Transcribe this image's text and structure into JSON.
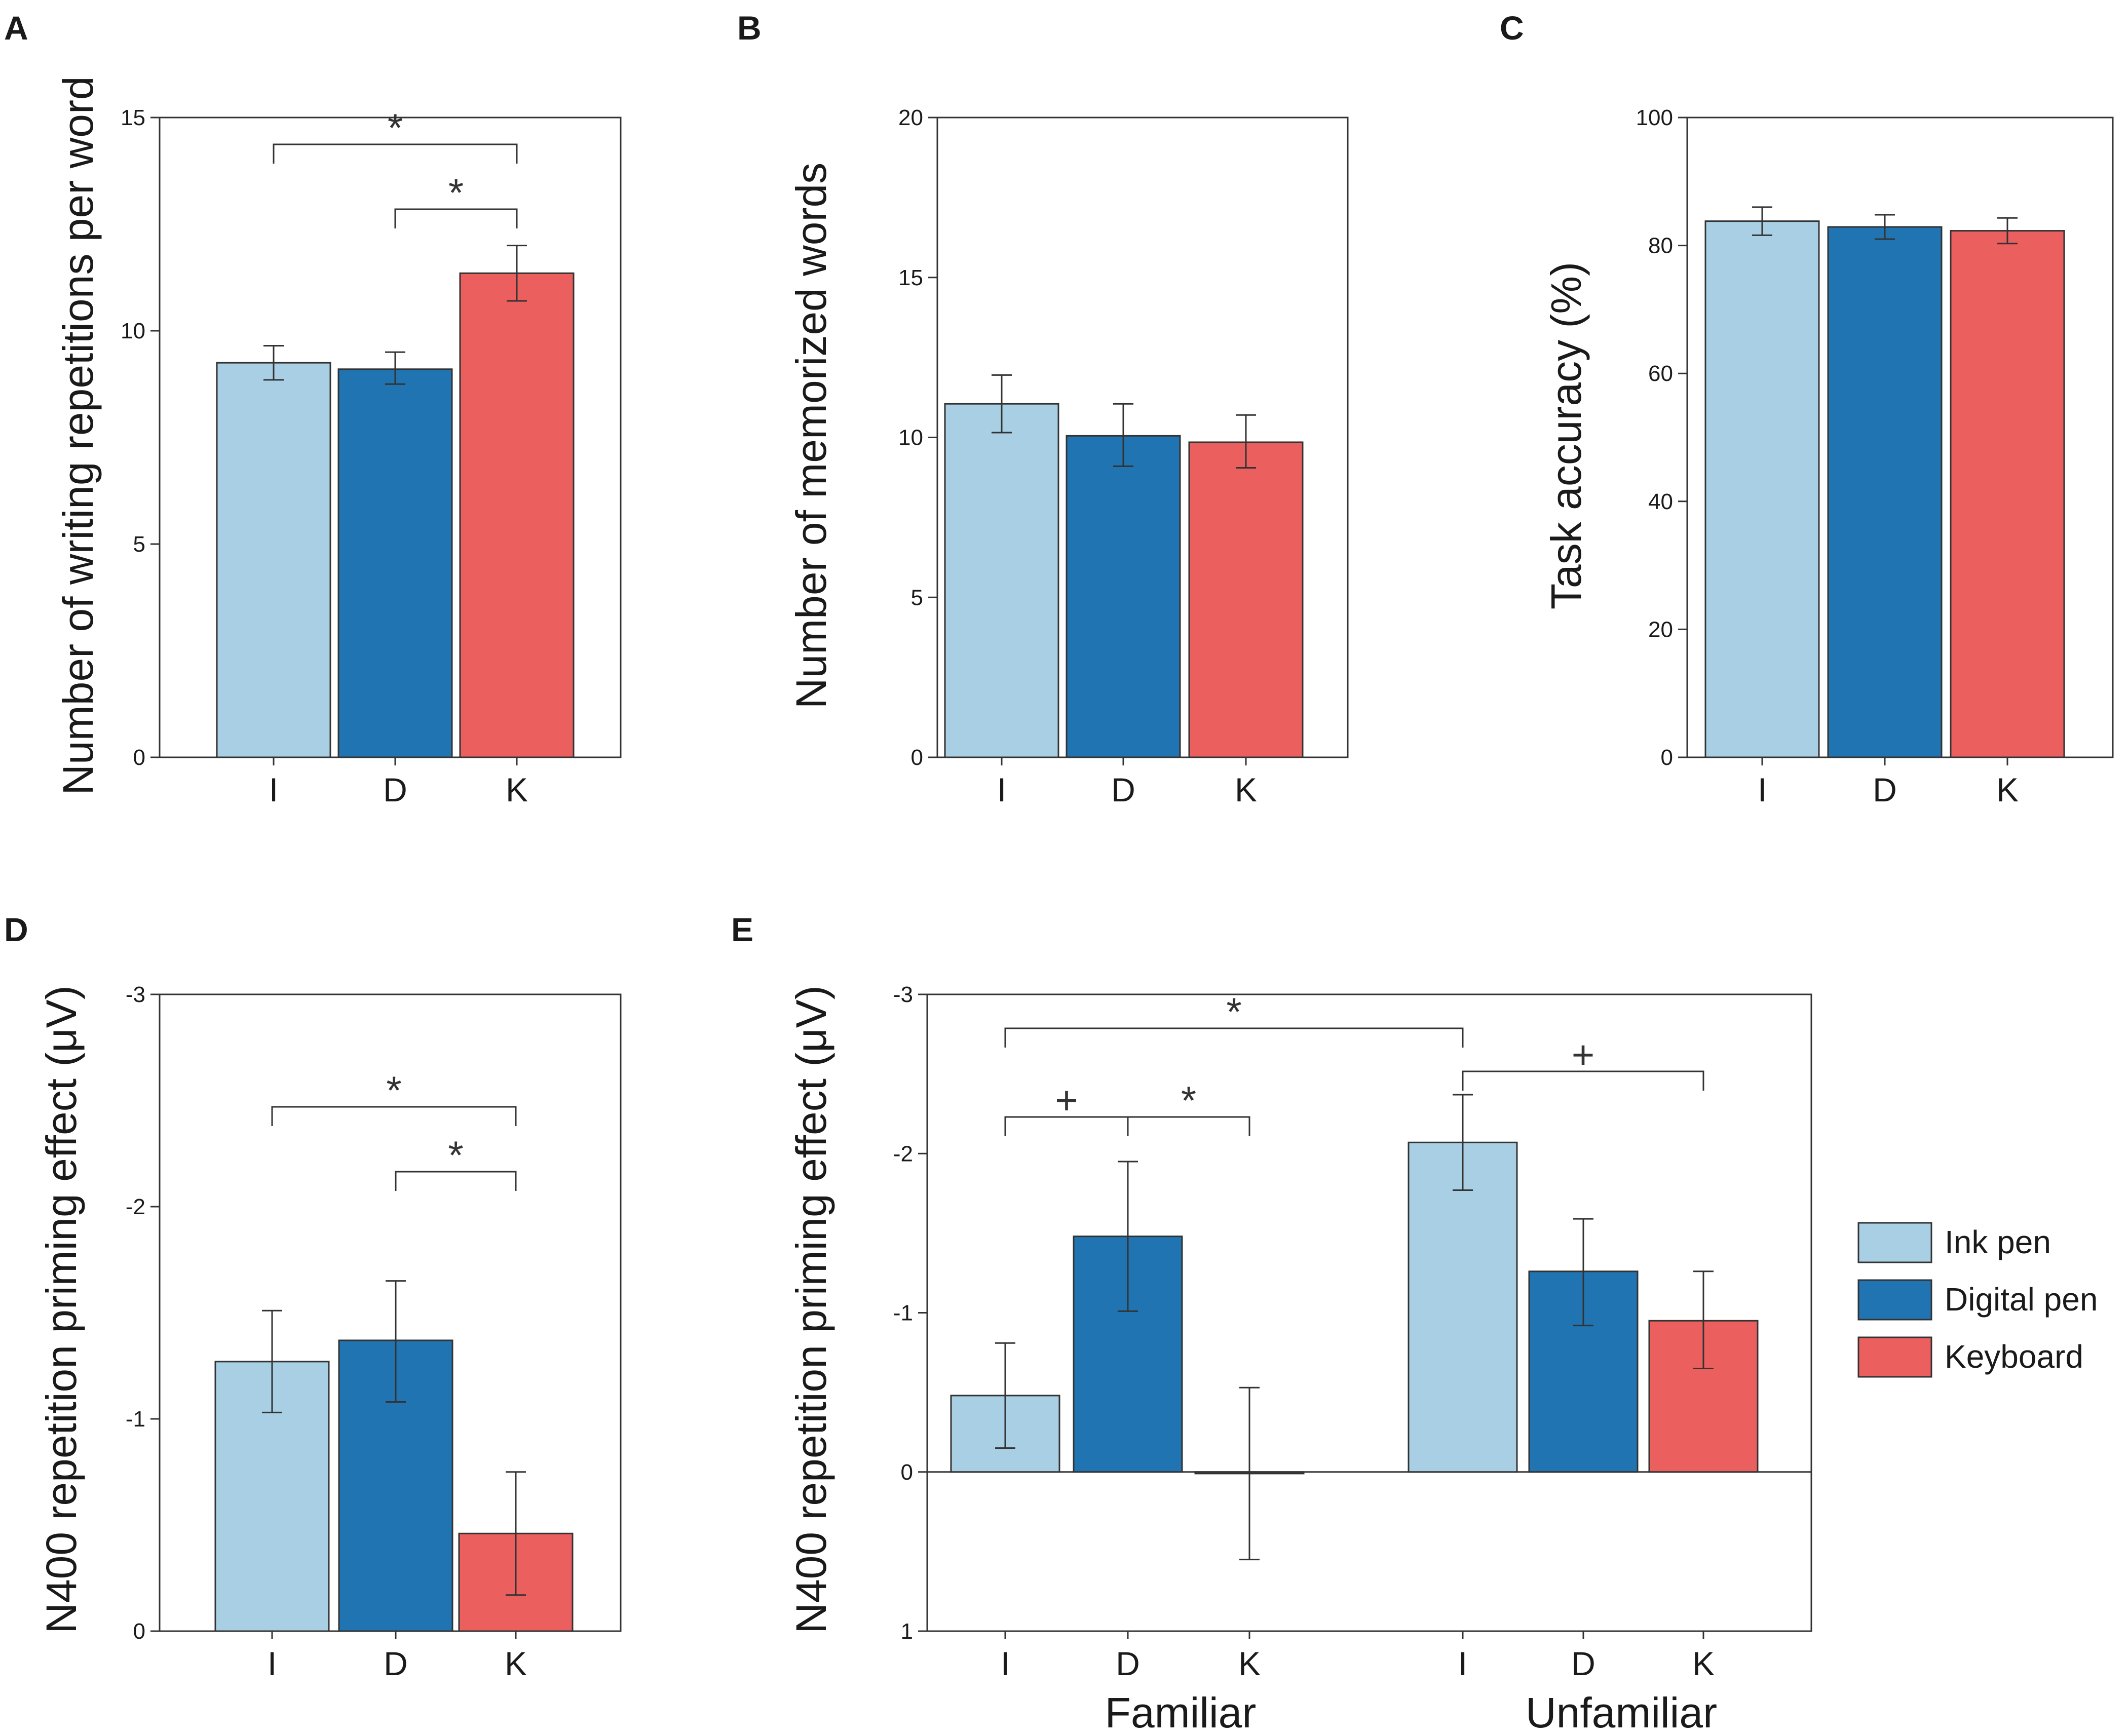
{
  "colors": {
    "ink_pen": "#a8cfe3",
    "digital_pen": "#1f74b1",
    "keyboard": "#eb5f5f",
    "axis": "#333333",
    "error": "#333333"
  },
  "legend": {
    "items": [
      {
        "label": "Ink pen",
        "color_key": "ink_pen"
      },
      {
        "label": "Digital pen",
        "color_key": "digital_pen"
      },
      {
        "label": "Keyboard",
        "color_key": "keyboard"
      }
    ]
  },
  "chart_data": [
    {
      "panel": "A",
      "type": "bar",
      "ylabel": "Number of writing repetitions per word",
      "ylim": [
        0,
        15
      ],
      "yticks": [
        0,
        5,
        10,
        15
      ],
      "ytick_labels": [
        "0",
        "5",
        "10",
        "15"
      ],
      "categories": [
        "I",
        "D",
        "K"
      ],
      "series": [
        {
          "name": "Ink pen",
          "color_key": "ink_pen",
          "value": 9.25,
          "err_low": 8.85,
          "err_high": 9.65
        },
        {
          "name": "Digital pen",
          "color_key": "digital_pen",
          "value": 9.1,
          "err_low": 8.75,
          "err_high": 9.5
        },
        {
          "name": "Keyboard",
          "color_key": "keyboard",
          "value": 11.35,
          "err_low": 10.7,
          "err_high": 12.0
        }
      ],
      "significance": [
        {
          "from": 0,
          "to": 2,
          "label": "*",
          "level": 0
        },
        {
          "from": 1,
          "to": 2,
          "label": "*",
          "level": 1
        }
      ]
    },
    {
      "panel": "B",
      "type": "bar",
      "ylabel": "Number of memorized words",
      "ylim": [
        0,
        20
      ],
      "yticks": [
        0,
        5,
        10,
        15,
        20
      ],
      "ytick_labels": [
        "0",
        "5",
        "10",
        "15",
        "20"
      ],
      "categories": [
        "I",
        "D",
        "K"
      ],
      "series": [
        {
          "name": "Ink pen",
          "color_key": "ink_pen",
          "value": 11.05,
          "err_low": 10.15,
          "err_high": 11.95
        },
        {
          "name": "Digital pen",
          "color_key": "digital_pen",
          "value": 10.05,
          "err_low": 9.1,
          "err_high": 11.05
        },
        {
          "name": "Keyboard",
          "color_key": "keyboard",
          "value": 9.85,
          "err_low": 9.05,
          "err_high": 10.7
        }
      ],
      "significance": []
    },
    {
      "panel": "C",
      "type": "bar",
      "ylabel": "Task accuracy (%)",
      "ylim": [
        0,
        100
      ],
      "yticks": [
        0,
        20,
        40,
        60,
        80,
        100
      ],
      "ytick_labels": [
        "0",
        "20",
        "40",
        "60",
        "80",
        "100"
      ],
      "categories": [
        "I",
        "D",
        "K"
      ],
      "series": [
        {
          "name": "Ink pen",
          "color_key": "ink_pen",
          "value": 83.8,
          "err_low": 81.6,
          "err_high": 86.0
        },
        {
          "name": "Digital pen",
          "color_key": "digital_pen",
          "value": 82.9,
          "err_low": 81.0,
          "err_high": 84.8
        },
        {
          "name": "Keyboard",
          "color_key": "keyboard",
          "value": 82.3,
          "err_low": 80.3,
          "err_high": 84.3
        }
      ],
      "significance": []
    },
    {
      "panel": "D",
      "type": "bar",
      "ylabel": "N400 repetition priming effect (μV)",
      "ylim": [
        0,
        -3
      ],
      "yticks": [
        0,
        -1,
        -2,
        -3
      ],
      "ytick_labels": [
        "0",
        "-1",
        "-2",
        "-3"
      ],
      "categories": [
        "I",
        "D",
        "K"
      ],
      "series": [
        {
          "name": "Ink pen",
          "color_key": "ink_pen",
          "value": -1.27,
          "err_low": -1.03,
          "err_high": -1.51
        },
        {
          "name": "Digital pen",
          "color_key": "digital_pen",
          "value": -1.37,
          "err_low": -1.08,
          "err_high": -1.65
        },
        {
          "name": "Keyboard",
          "color_key": "keyboard",
          "value": -0.46,
          "err_low": -0.17,
          "err_high": -0.75
        }
      ],
      "significance": [
        {
          "from": 0,
          "to": 2,
          "label": "*",
          "level": 0
        },
        {
          "from": 1,
          "to": 2,
          "label": "*",
          "level": 1
        }
      ]
    },
    {
      "panel": "E",
      "type": "bar",
      "ylabel": "N400 repetition priming effect (μV)",
      "ylim": [
        1,
        -3
      ],
      "yticks": [
        1,
        0,
        -1,
        -2,
        -3
      ],
      "ytick_labels": [
        "1",
        "0",
        "-1",
        "-2",
        "-3"
      ],
      "groups": [
        {
          "name": "Familiar",
          "categories": [
            "I",
            "D",
            "K"
          ],
          "series": [
            {
              "name": "Ink pen",
              "color_key": "ink_pen",
              "value": -0.48,
              "err_low": -0.15,
              "err_high": -0.81
            },
            {
              "name": "Digital pen",
              "color_key": "digital_pen",
              "value": -1.48,
              "err_low": -1.01,
              "err_high": -1.95
            },
            {
              "name": "Keyboard",
              "color_key": "keyboard",
              "value": 0.01,
              "err_low": 0.55,
              "err_high": -0.53
            }
          ]
        },
        {
          "name": "Unfamiliar",
          "categories": [
            "I",
            "D",
            "K"
          ],
          "series": [
            {
              "name": "Ink pen",
              "color_key": "ink_pen",
              "value": -2.07,
              "err_low": -1.77,
              "err_high": -2.37
            },
            {
              "name": "Digital pen",
              "color_key": "digital_pen",
              "value": -1.26,
              "err_low": -0.92,
              "err_high": -1.59
            },
            {
              "name": "Keyboard",
              "color_key": "keyboard",
              "value": -0.95,
              "err_low": -0.65,
              "err_high": -1.26
            }
          ]
        }
      ],
      "significance": [
        {
          "from": [
            0,
            0
          ],
          "to": [
            1,
            0
          ],
          "label": "*",
          "level": 0
        },
        {
          "from": [
            0,
            0
          ],
          "to": [
            0,
            1
          ],
          "label": "+",
          "level": 2
        },
        {
          "from": [
            0,
            1
          ],
          "to": [
            0,
            2
          ],
          "label": "*",
          "level": 2
        },
        {
          "from": [
            1,
            0
          ],
          "to": [
            1,
            2
          ],
          "label": "+",
          "level": 1
        }
      ]
    }
  ]
}
